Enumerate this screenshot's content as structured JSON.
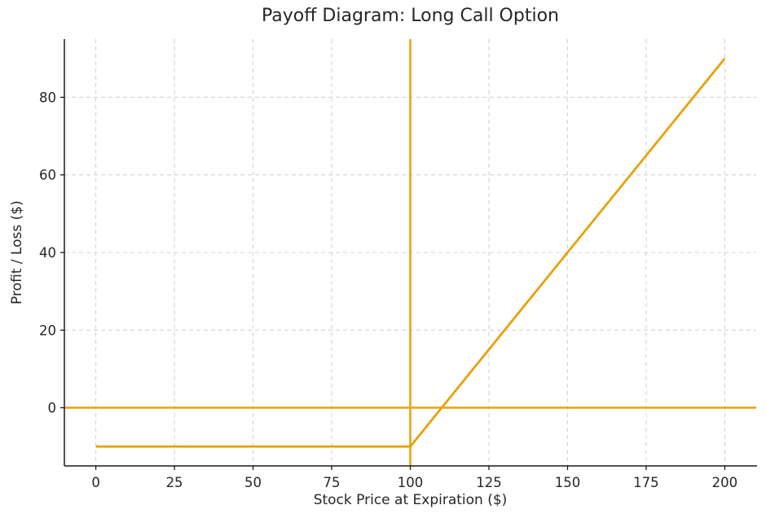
{
  "colors": {
    "accent_orange": "#E8A20C",
    "spine": "#1A1A1A",
    "grid": "#D3D3D3",
    "text": "#262626",
    "background": "#FFFFFF"
  },
  "chart_data": {
    "type": "line",
    "title": "Payoff Diagram: Long Call Option",
    "xlabel": "Stock Price at Expiration ($)",
    "ylabel": "Profit / Loss ($)",
    "xlim": [
      -10,
      210
    ],
    "ylim": [
      -15,
      95
    ],
    "xticks": [
      0,
      25,
      50,
      75,
      100,
      125,
      150,
      175,
      200
    ],
    "yticks": [
      0,
      20,
      40,
      60,
      80
    ],
    "grid": {
      "visible": true,
      "style": "dashed"
    },
    "legend": "none",
    "series": [
      {
        "name": "long-call-payoff",
        "x": [
          0,
          100,
          200
        ],
        "y": [
          -10,
          -10,
          90
        ],
        "color": "#E8A20C",
        "line_width": 2.8
      }
    ],
    "reference_lines": [
      {
        "name": "zero-profit-line",
        "orientation": "horizontal",
        "value": 0,
        "color": "#E8A20C",
        "line_width": 2.5
      },
      {
        "name": "strike-price-line",
        "orientation": "vertical",
        "value": 100,
        "color": "#E8A20C",
        "line_width": 2.5
      }
    ]
  }
}
